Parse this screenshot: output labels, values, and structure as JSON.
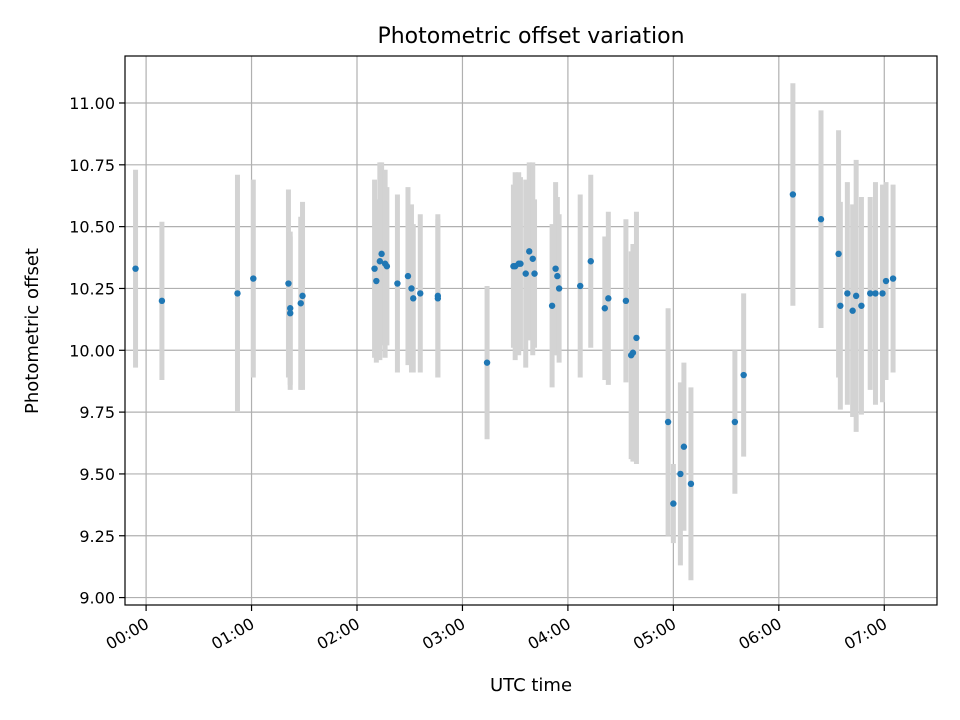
{
  "chart_data": {
    "type": "scatter",
    "title": "Photometric offset variation",
    "xlabel": "UTC time",
    "ylabel": "Photometric offset",
    "grid": true,
    "legend": "none",
    "xlim": [
      "-0:12",
      "7:30"
    ],
    "ylim": [
      8.97,
      11.19
    ],
    "x_ticks": [
      "00:00",
      "01:00",
      "02:00",
      "03:00",
      "04:00",
      "05:00",
      "06:00",
      "07:00"
    ],
    "y_ticks": [
      "9.00",
      "9.25",
      "9.50",
      "9.75",
      "10.00",
      "10.25",
      "10.50",
      "10.75",
      "11.00"
    ],
    "colors": {
      "point": "#1f77b4",
      "errorbar": "#d3d3d3",
      "grid": "#b0b0b0"
    },
    "series": [
      {
        "x": [
          "-0:06",
          "0:09",
          "0:52",
          "1:01",
          "1:21",
          "1:22",
          "1:22",
          "1:28",
          "1:29",
          "2:10",
          "2:11",
          "2:13",
          "2:14",
          "2:16",
          "2:17",
          "2:23",
          "2:29",
          "2:31",
          "2:32",
          "2:36",
          "2:46",
          "2:46",
          "3:14",
          "3:29",
          "3:30",
          "3:32",
          "3:33",
          "3:36",
          "3:38",
          "3:40",
          "3:41",
          "3:51",
          "3:53",
          "3:54",
          "3:55",
          "4:07",
          "4:13",
          "4:21",
          "4:23",
          "4:33",
          "4:36",
          "4:37",
          "4:39",
          "4:57",
          "5:00",
          "5:04",
          "5:06",
          "5:10",
          "5:35",
          "5:40",
          "6:08",
          "6:24",
          "6:34",
          "6:35",
          "6:39",
          "6:42",
          "6:44",
          "6:47",
          "6:52",
          "6:55",
          "6:59",
          "7:01",
          "7:05"
        ],
        "y": [
          10.33,
          10.2,
          10.23,
          10.29,
          10.27,
          10.17,
          10.15,
          10.19,
          10.22,
          10.33,
          10.28,
          10.36,
          10.39,
          10.35,
          10.34,
          10.27,
          10.3,
          10.25,
          10.21,
          10.23,
          10.22,
          10.21,
          9.95,
          10.34,
          10.34,
          10.35,
          10.35,
          10.31,
          10.4,
          10.37,
          10.31,
          10.18,
          10.33,
          10.3,
          10.25,
          10.26,
          10.36,
          10.17,
          10.21,
          10.2,
          9.98,
          9.99,
          10.05,
          9.71,
          9.38,
          9.5,
          9.61,
          9.46,
          9.71,
          9.9,
          10.63,
          10.53,
          10.39,
          10.18,
          10.23,
          10.16,
          10.22,
          10.18,
          10.23,
          10.23,
          10.23,
          10.28,
          10.29
        ],
        "err": [
          0.4,
          0.32,
          0.48,
          0.4,
          0.38,
          0.31,
          0.31,
          0.35,
          0.38,
          0.36,
          0.33,
          0.4,
          0.37,
          0.38,
          0.32,
          0.36,
          0.36,
          0.34,
          0.3,
          0.32,
          0.33,
          0.32,
          0.31,
          0.33,
          0.38,
          0.37,
          0.35,
          0.38,
          0.36,
          0.39,
          0.3,
          0.33,
          0.35,
          0.32,
          0.3,
          0.37,
          0.35,
          0.29,
          0.35,
          0.33,
          0.42,
          0.44,
          0.51,
          0.46,
          0.16,
          0.37,
          0.34,
          0.39,
          0.29,
          0.33,
          0.45,
          0.44,
          0.5,
          0.42,
          0.45,
          0.43,
          0.55,
          0.44,
          0.39,
          0.45,
          0.44,
          0.4,
          0.38
        ]
      }
    ]
  }
}
